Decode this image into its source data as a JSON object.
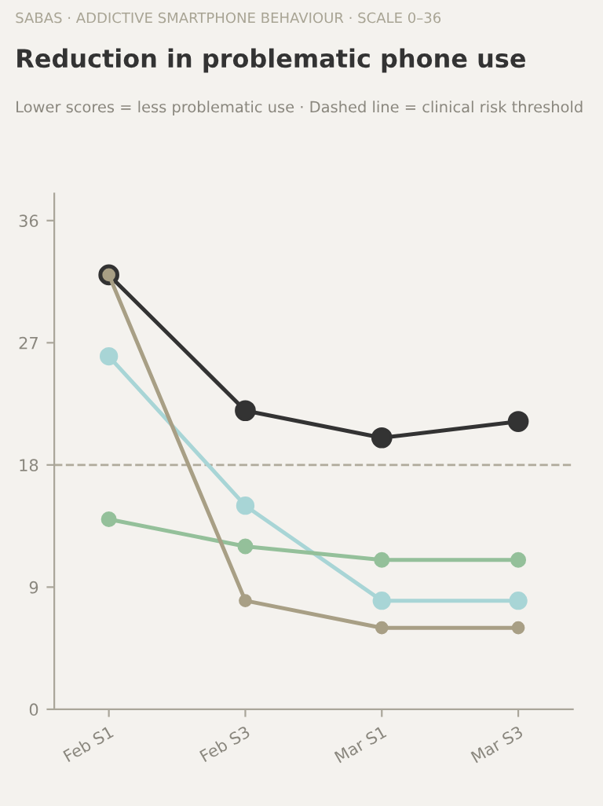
{
  "chart_data": {
    "type": "line",
    "title": "Reduction in problematic phone use",
    "subtitle": "Lower scores = less problematic use · Dashed line = clinical risk threshold",
    "annotations": [
      "SABAS · ADDICTIVE SMARTPHONE BEHAVIOUR · SCALE 0–36"
    ],
    "categories": [
      "Feb S1",
      "Feb S3",
      "Mar S1",
      "Mar S3"
    ],
    "series": [
      {
        "color": "#333333",
        "values": [
          32,
          22,
          20,
          21.2
        ]
      },
      {
        "color": "#a8d5d6",
        "values": [
          26,
          15,
          8,
          8
        ]
      },
      {
        "color": "#94c09a",
        "values": [
          14,
          12,
          11,
          11
        ]
      },
      {
        "color": "#a89f85",
        "values": [
          32,
          8,
          6,
          6
        ]
      }
    ],
    "ylim": [
      0,
      38
    ],
    "yticks": [
      0,
      9,
      18,
      27,
      36
    ],
    "ref_lines": [
      {
        "axis": "y",
        "value": 18,
        "color": "#b0ab9c",
        "line_style": "dashed"
      }
    ],
    "marker": "circle",
    "line_style": "solid",
    "grid": false,
    "legend": false
  }
}
